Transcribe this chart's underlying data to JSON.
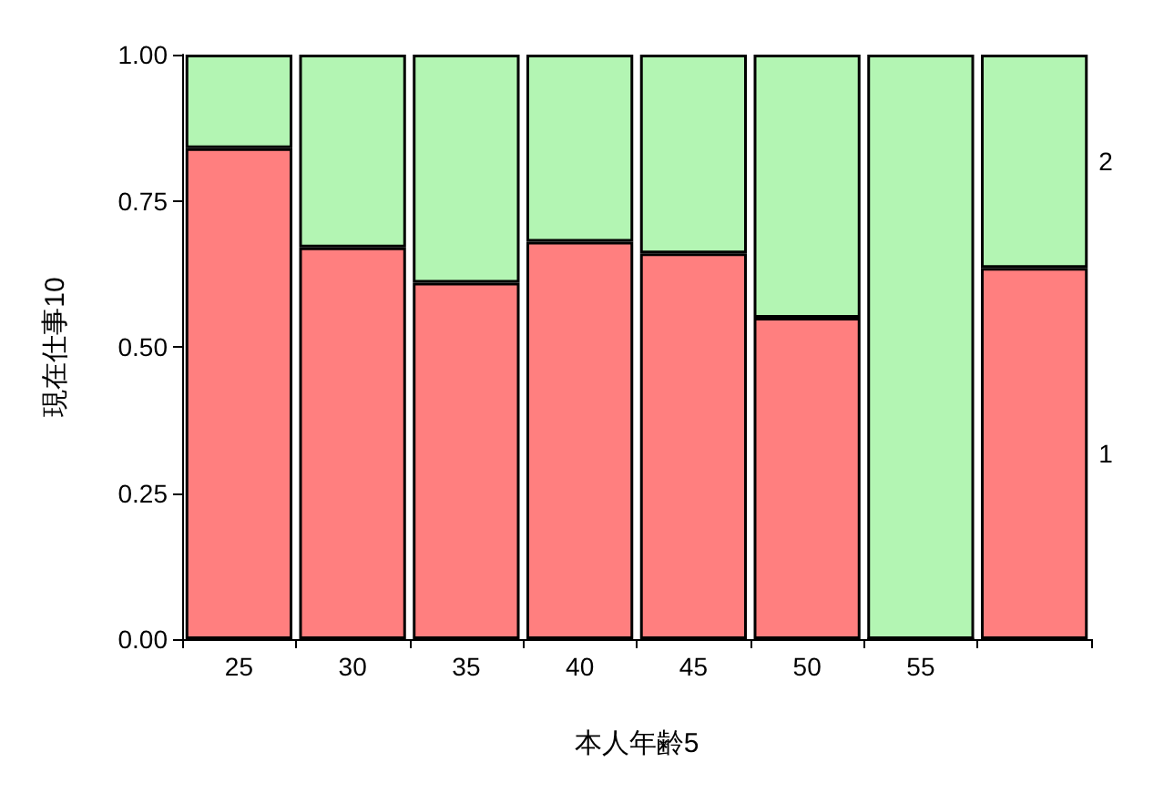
{
  "chart_data": {
    "type": "bar",
    "stacked": true,
    "xlabel": "本人年齢5",
    "ylabel": "現在仕事10",
    "categories": [
      "25",
      "30",
      "35",
      "40",
      "45",
      "50",
      "55",
      null
    ],
    "series": [
      {
        "name": "1",
        "color": "#ff7f7f",
        "values": [
          0.84,
          0.67,
          0.61,
          0.68,
          0.66,
          0.55,
          0,
          0.635
        ]
      },
      {
        "name": "2",
        "color": "#b3f5b3",
        "values": [
          0.16,
          0.33,
          0.39,
          0.32,
          0.34,
          0.45,
          1,
          0.365
        ]
      }
    ],
    "ylim": [
      0,
      1
    ],
    "yticks": [
      {
        "value": 0,
        "label": "0.00"
      },
      {
        "value": 0.25,
        "label": "0.25"
      },
      {
        "value": 0.5,
        "label": "0.50"
      },
      {
        "value": 0.75,
        "label": "0.75"
      },
      {
        "value": 1,
        "label": "1.00"
      }
    ]
  }
}
